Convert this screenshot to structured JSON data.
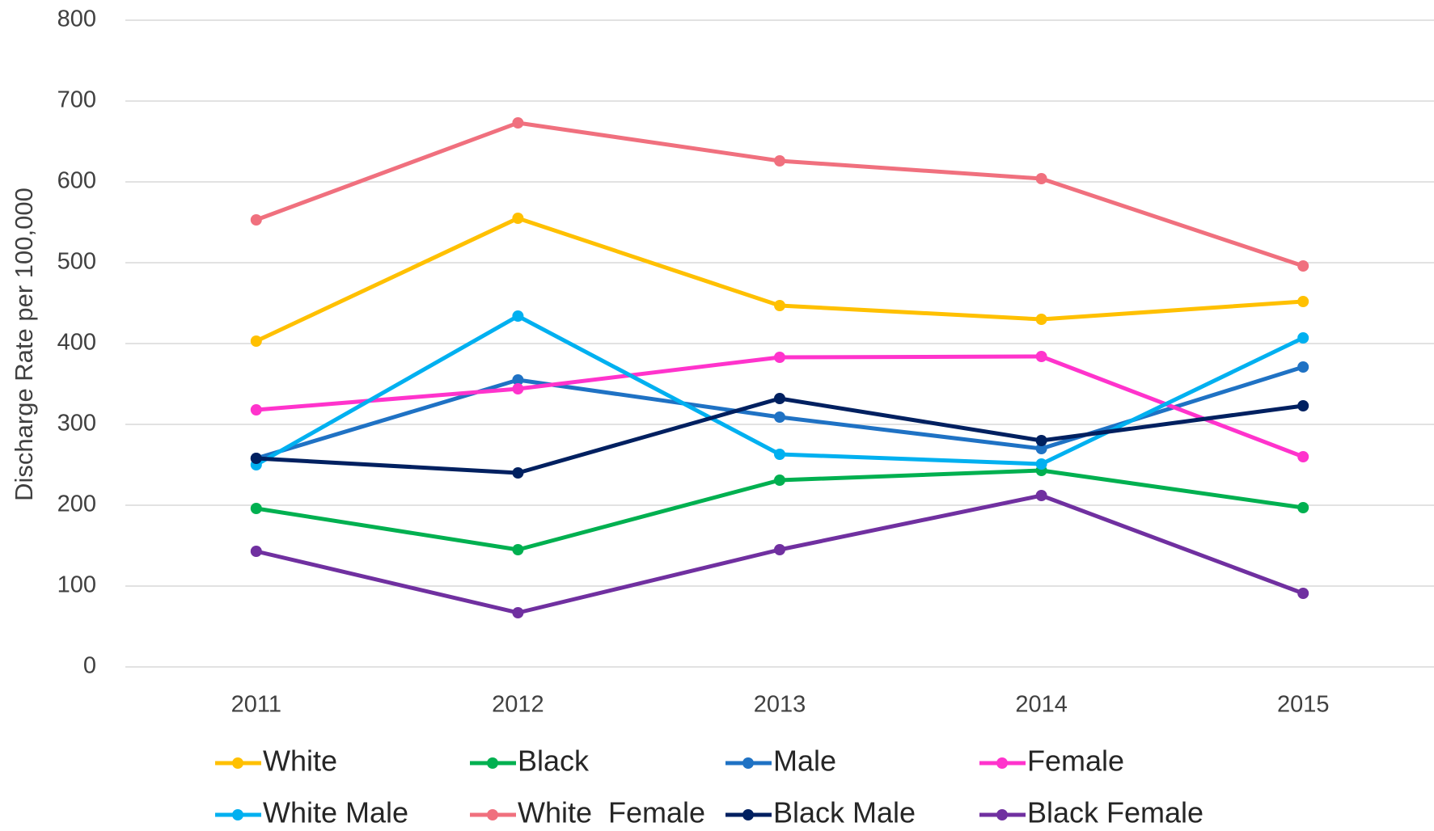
{
  "chart_data": {
    "type": "line",
    "y_label": "Discharge Rate per 100,000",
    "categories": [
      "2011",
      "2012",
      "2013",
      "2014",
      "2015"
    ],
    "series": [
      {
        "name": "White",
        "color": "#ffc000",
        "values": [
          403,
          555,
          447,
          430,
          452
        ]
      },
      {
        "name": "Black",
        "color": "#00b050",
        "values": [
          196,
          145,
          231,
          243,
          197
        ]
      },
      {
        "name": "Male",
        "color": "#1f72c4",
        "values": [
          258,
          355,
          309,
          270,
          371
        ]
      },
      {
        "name": "Female",
        "color": "#ff33cc",
        "values": [
          318,
          344,
          383,
          384,
          260
        ]
      },
      {
        "name": "White Male",
        "color": "#00b0f0",
        "values": [
          250,
          434,
          263,
          251,
          407
        ]
      },
      {
        "name": "White  Female",
        "color": "#f0707e",
        "values": [
          553,
          673,
          626,
          604,
          496
        ]
      },
      {
        "name": "Black Male",
        "color": "#002060",
        "values": [
          258,
          240,
          332,
          280,
          323
        ]
      },
      {
        "name": "Black Female",
        "color": "#7030a0",
        "values": [
          143,
          67,
          145,
          212,
          91
        ]
      }
    ],
    "ylim": [
      0,
      800
    ],
    "yticks": [
      0,
      100,
      200,
      300,
      400,
      500,
      600,
      700,
      800
    ],
    "grid": true,
    "legend": "bottom"
  }
}
